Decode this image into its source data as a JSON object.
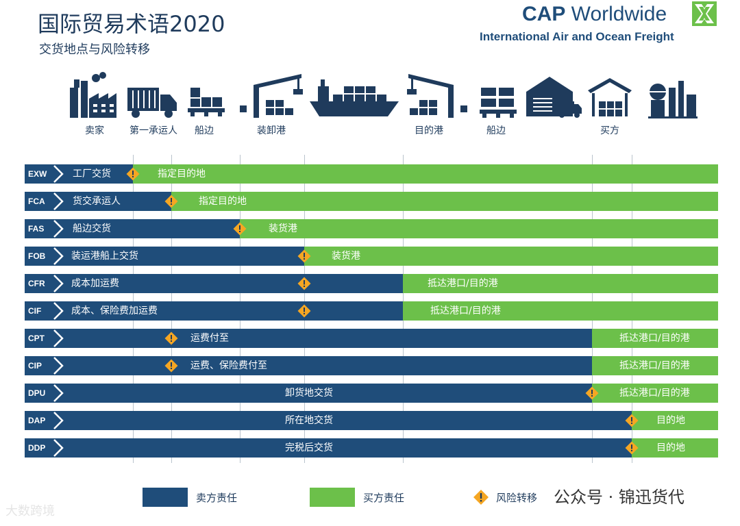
{
  "header": {
    "title": "国际贸易术语2020",
    "subtitle": "交货地点与风险转移",
    "brand_bold": "CAP",
    "brand_rest": " Worldwide",
    "tagline": "International Air and Ocean Freight"
  },
  "stages": [
    {
      "label": "卖家",
      "icon": "factory-icon"
    },
    {
      "label": "第一承运人",
      "icon": "truck-icon"
    },
    {
      "label": "船边",
      "icon": "cargo-boxes-icon"
    },
    {
      "label": "装卸港",
      "icon": "port-crane-icon"
    },
    {
      "label": "",
      "icon": "container-ship-icon"
    },
    {
      "label": "目的港",
      "icon": "port-crane-icon"
    },
    {
      "label": "船边",
      "icon": "cargo-boxes-icon"
    },
    {
      "label": "",
      "icon": "warehouse-truck-icon"
    },
    {
      "label": "买方",
      "icon": "warehouse-icon"
    },
    {
      "label": "",
      "icon": "plant-icon"
    }
  ],
  "terms": [
    {
      "code": "EXW",
      "seller_text": "工厂交货",
      "buyer_text": "指定目的地"
    },
    {
      "code": "FCA",
      "seller_text": "货交承运人",
      "buyer_text": "指定目的地"
    },
    {
      "code": "FAS",
      "seller_text": "船边交货",
      "buyer_text": "装货港"
    },
    {
      "code": "FOB",
      "seller_text": "装运港船上交货",
      "buyer_text": "装货港"
    },
    {
      "code": "CFR",
      "seller_text": "成本加运费",
      "buyer_text": "抵达港口/目的港"
    },
    {
      "code": "CIF",
      "seller_text": "成本、保险费加运费",
      "buyer_text": "抵达港口/目的港"
    },
    {
      "code": "CPT",
      "seller_text": "运费付至",
      "buyer_text": "抵达港口/目的港"
    },
    {
      "code": "CIP",
      "seller_text": "运费、保险费付至",
      "buyer_text": "抵达港口/目的港"
    },
    {
      "code": "DPU",
      "seller_text": "卸货地交货",
      "buyer_text": "抵达港口/目的港"
    },
    {
      "code": "DAP",
      "seller_text": "所在地交货",
      "buyer_text": "目的地"
    },
    {
      "code": "DDP",
      "seller_text": "完税后交货",
      "buyer_text": "目的地"
    }
  ],
  "legend": {
    "seller": "卖方责任",
    "buyer": "买方责任",
    "risk": "风险转移"
  },
  "colors": {
    "seller": "#1f4d7a",
    "buyer": "#6cc04a",
    "risk": "#f5a623"
  },
  "footer": {
    "wechat": "公众号 · 锦迅货代",
    "watermark": "大数跨境"
  }
}
